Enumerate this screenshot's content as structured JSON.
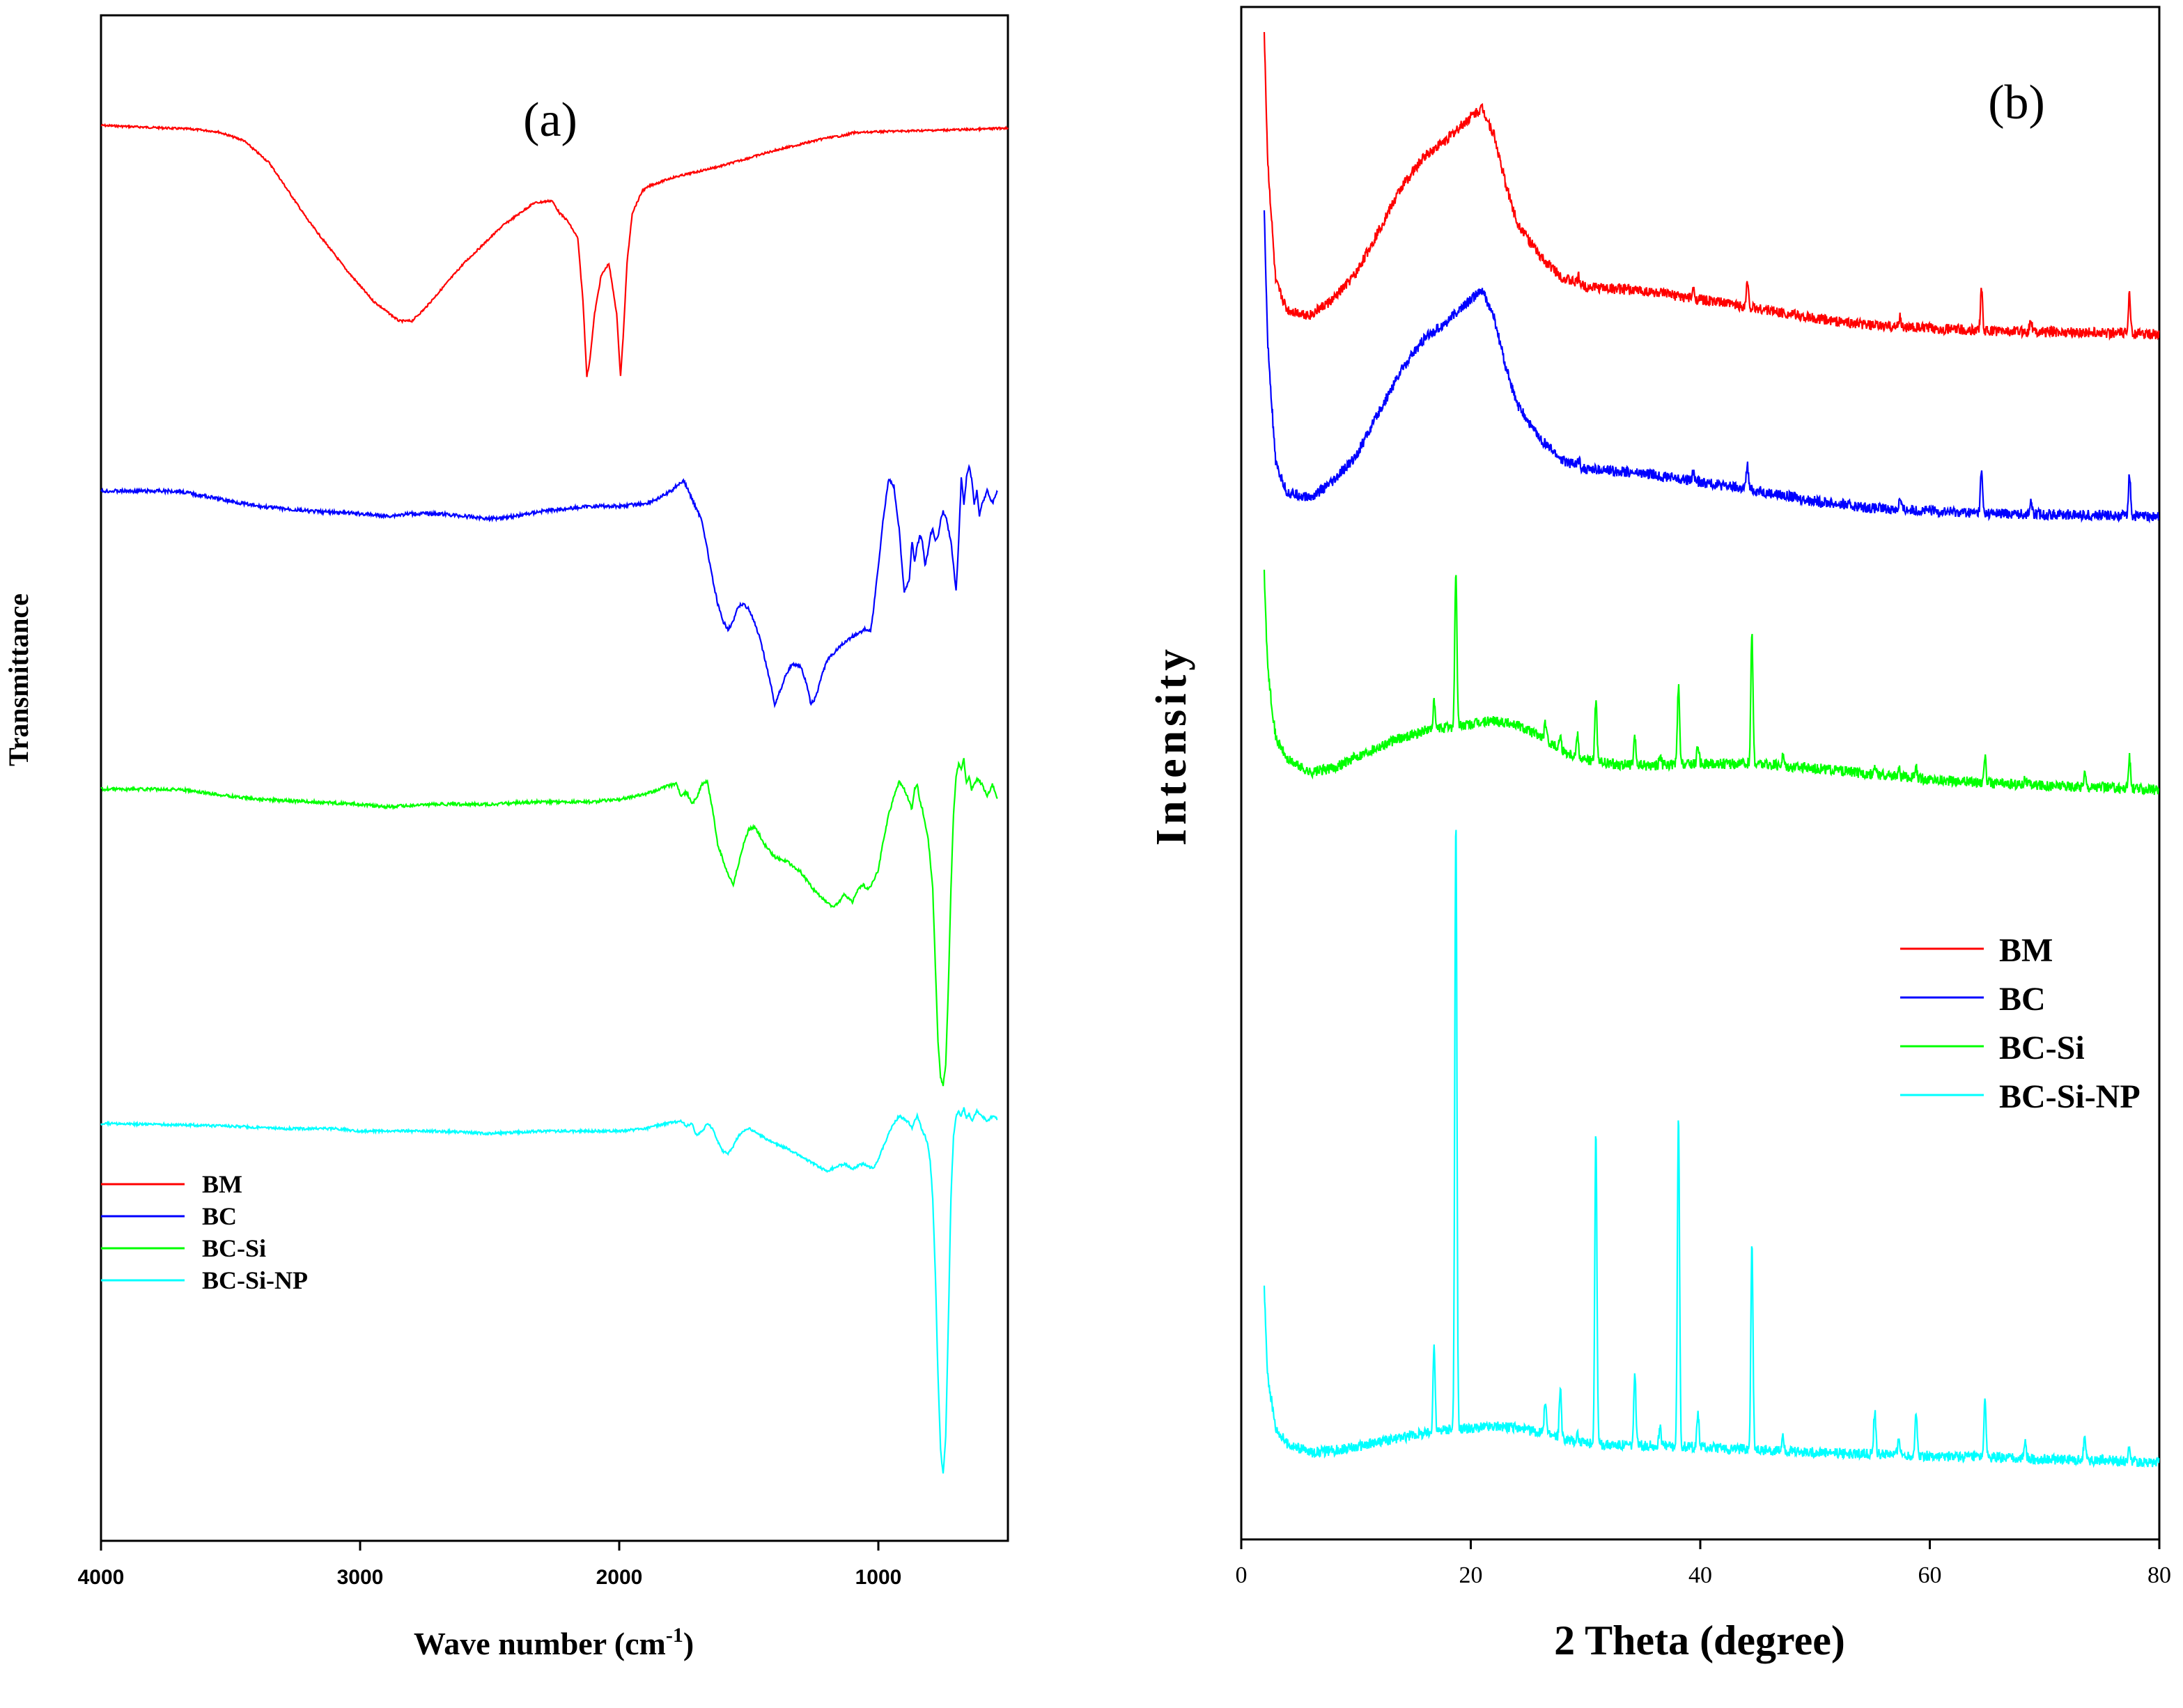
{
  "chart_data": [
    {
      "panel": "(a)",
      "type": "line",
      "title": "(a)",
      "xlabel": "Wave number (cm-1)",
      "xlabel_main": "Wave number (cm",
      "xlabel_sup": "-1",
      "xlabel_close": ")",
      "ylabel": "Transmittance",
      "xlim": [
        4000,
        500
      ],
      "x_reversed": true,
      "xticks": [
        4000,
        3000,
        2000,
        1000
      ],
      "yticks": [],
      "grid": false,
      "legend_position": "bottom-left",
      "series": [
        {
          "name": "BM",
          "color": "#ff0000",
          "offset": 0.0,
          "x": [
            4000,
            3650,
            3550,
            3450,
            3350,
            3200,
            3050,
            2950,
            2850,
            2800,
            2750,
            2600,
            2450,
            2330,
            2260,
            2230,
            2200,
            2160,
            2140,
            2125,
            2115,
            2095,
            2070,
            2040,
            2010,
            1995,
            1985,
            1970,
            1950,
            1910,
            1880,
            1800,
            1600,
            1400,
            1200,
            1130,
            1100,
            1000,
            800,
            600,
            500
          ],
          "y": [
            0.0,
            1.5,
            2.5,
            6,
            15,
            38,
            58,
            70,
            78,
            78,
            73,
            55,
            40,
            31,
            30,
            35,
            38,
            45,
            70,
            100,
            95,
            75,
            60,
            55,
            75,
            100,
            85,
            55,
            35,
            26,
            24,
            21,
            16,
            10,
            5,
            4,
            3,
            2.5,
            2,
            1.5,
            1.0
          ],
          "noise": 0.4
        },
        {
          "name": "BC",
          "color": "#0000ff",
          "offset": 120,
          "x": [
            4000,
            3700,
            3600,
            3400,
            3200,
            3000,
            2900,
            2800,
            2700,
            2600,
            2500,
            2400,
            2300,
            2200,
            2100,
            2000,
            1900,
            1850,
            1800,
            1770,
            1750,
            1720,
            1680,
            1640,
            1620,
            1600,
            1580,
            1560,
            1540,
            1520,
            1500,
            1480,
            1460,
            1440,
            1420,
            1400,
            1380,
            1360,
            1340,
            1320,
            1300,
            1280,
            1260,
            1240,
            1220,
            1200,
            1150,
            1100,
            1050,
            1030,
            1020,
            1000,
            980,
            960,
            940,
            920,
            900,
            880,
            870,
            860,
            850,
            840,
            830,
            820,
            810,
            800,
            790,
            780,
            770,
            760,
            750,
            740,
            730,
            720,
            710,
            700,
            690,
            680,
            670,
            660,
            650,
            640,
            630,
            620,
            610,
            600,
            580,
            560,
            540
          ],
          "y": [
            0.0,
            0.0,
            2,
            6,
            8,
            9,
            10,
            9,
            9,
            10,
            11,
            10,
            8,
            7,
            6,
            6,
            5,
            3,
            0,
            -3,
            -4,
            3,
            12,
            35,
            45,
            52,
            55,
            52,
            46,
            45,
            47,
            52,
            58,
            66,
            75,
            85,
            80,
            74,
            70,
            69,
            70,
            76,
            85,
            82,
            74,
            68,
            62,
            58,
            55,
            56,
            48,
            30,
            10,
            -5,
            -2,
            15,
            40,
            35,
            20,
            28,
            22,
            18,
            20,
            30,
            25,
            18,
            15,
            20,
            18,
            12,
            8,
            10,
            15,
            20,
            30,
            40,
            20,
            -5,
            5,
            -5,
            -10,
            -5,
            5,
            0,
            10,
            5,
            0,
            5,
            0
          ],
          "noise": 0.7
        },
        {
          "name": "BC-Si",
          "color": "#00ff00",
          "offset": 230,
          "x": [
            4000,
            3700,
            3600,
            3400,
            3200,
            3000,
            2900,
            2700,
            2500,
            2300,
            2100,
            2000,
            1900,
            1820,
            1780,
            1760,
            1740,
            1720,
            1700,
            1680,
            1660,
            1640,
            1620,
            1600,
            1580,
            1560,
            1540,
            1520,
            1500,
            1480,
            1460,
            1440,
            1400,
            1350,
            1300,
            1250,
            1200,
            1180,
            1160,
            1130,
            1100,
            1080,
            1060,
            1040,
            1020,
            1000,
            980,
            960,
            940,
            920,
            900,
            880,
            870,
            860,
            850,
            840,
            830,
            820,
            810,
            800,
            790,
            780,
            770,
            760,
            750,
            740,
            730,
            720,
            710,
            700,
            690,
            680,
            670,
            660,
            650,
            640,
            620,
            600,
            580,
            560,
            540
          ],
          "y": [
            0.0,
            0.0,
            1.5,
            4,
            5,
            6,
            7,
            6,
            6,
            5,
            5,
            4,
            2,
            -1,
            -2,
            3,
            1,
            6,
            3,
            -2,
            -3,
            8,
            22,
            28,
            34,
            38,
            30,
            22,
            16,
            15,
            18,
            22,
            27,
            29,
            33,
            40,
            45,
            47,
            46,
            42,
            45,
            40,
            38,
            40,
            37,
            32,
            20,
            10,
            3,
            -3,
            0,
            5,
            8,
            0,
            -2,
            5,
            8,
            14,
            18,
            28,
            40,
            70,
            100,
            115,
            118,
            110,
            80,
            40,
            10,
            -5,
            -10,
            -8,
            -12,
            -2,
            -5,
            0,
            -4,
            -2,
            3,
            -2,
            4
          ],
          "noise": 0.6
        },
        {
          "name": "BC-Si-NP",
          "color": "#00ffff",
          "offset": 340,
          "x": [
            4000,
            3700,
            3500,
            3300,
            3100,
            3000,
            2900,
            2700,
            2500,
            2300,
            2100,
            2000,
            1900,
            1820,
            1760,
            1740,
            1720,
            1700,
            1680,
            1660,
            1640,
            1620,
            1600,
            1580,
            1560,
            1540,
            1520,
            1500,
            1480,
            1450,
            1400,
            1350,
            1300,
            1250,
            1200,
            1180,
            1160,
            1130,
            1100,
            1080,
            1060,
            1040,
            1020,
            1000,
            980,
            960,
            940,
            920,
            900,
            880,
            870,
            860,
            850,
            840,
            830,
            820,
            810,
            800,
            790,
            780,
            770,
            760,
            750,
            740,
            730,
            720,
            710,
            700,
            690,
            680,
            670,
            660,
            650,
            640,
            620,
            600,
            580,
            560,
            540
          ],
          "y": [
            0.0,
            0.5,
            1,
            2,
            2,
            3,
            3,
            3,
            4,
            3,
            3,
            3,
            2,
            0,
            -1,
            1,
            0,
            5,
            3,
            0,
            2,
            7,
            11,
            12,
            9,
            5,
            3,
            2,
            3,
            5,
            8,
            10,
            13,
            16,
            19,
            18,
            17,
            16,
            18,
            17,
            16,
            17,
            18,
            14,
            9,
            4,
            0,
            -3,
            -2,
            0,
            2,
            -1,
            -3,
            0,
            3,
            5,
            8,
            15,
            30,
            60,
            100,
            130,
            140,
            125,
            80,
            30,
            5,
            -3,
            -5,
            -3,
            -6,
            -2,
            -4,
            -1,
            -5,
            -3,
            -1,
            -3,
            -2
          ],
          "noise": 0.5
        }
      ]
    },
    {
      "panel": "(b)",
      "type": "line",
      "title": "(b)",
      "xlabel": "2 Theta (degree)",
      "ylabel": "Intensity",
      "xlim": [
        0,
        80
      ],
      "xticks": [
        0,
        20,
        40,
        60,
        80
      ],
      "yticks": [],
      "grid": false,
      "legend_position": "middle-right",
      "peaks_bm_bc": [
        [
          29.4,
          8
        ],
        [
          39.4,
          10
        ],
        [
          44.1,
          28
        ],
        [
          57.4,
          12
        ],
        [
          64.5,
          48
        ],
        [
          68.8,
          16
        ],
        [
          77.4,
          48
        ]
      ],
      "peaks_bcsi": [
        [
          16.8,
          30
        ],
        [
          18.7,
          180
        ],
        [
          26.5,
          18
        ],
        [
          27.8,
          16
        ],
        [
          29.3,
          25
        ],
        [
          30.9,
          70
        ],
        [
          34.3,
          30
        ],
        [
          36.5,
          10
        ],
        [
          38.1,
          90
        ],
        [
          39.8,
          22
        ],
        [
          44.5,
          150
        ],
        [
          47.2,
          12
        ],
        [
          55.2,
          12
        ],
        [
          57.3,
          10
        ],
        [
          58.8,
          12
        ],
        [
          64.8,
          30
        ],
        [
          68.3,
          8
        ],
        [
          73.5,
          16
        ],
        [
          77.4,
          35
        ]
      ],
      "peaks_bcsinp": [
        [
          16.8,
          100
        ],
        [
          18.7,
          700
        ],
        [
          26.5,
          40
        ],
        [
          27.8,
          55
        ],
        [
          29.3,
          10
        ],
        [
          30.9,
          360
        ],
        [
          34.3,
          80
        ],
        [
          36.5,
          25
        ],
        [
          38.1,
          380
        ],
        [
          39.8,
          40
        ],
        [
          44.5,
          235
        ],
        [
          47.2,
          20
        ],
        [
          55.2,
          50
        ],
        [
          57.3,
          20
        ],
        [
          58.8,
          50
        ],
        [
          64.8,
          65
        ],
        [
          68.3,
          20
        ],
        [
          73.5,
          30
        ],
        [
          77.4,
          18
        ]
      ],
      "series": [
        {
          "name": "BM",
          "color": "#ff0000",
          "baseline_offset": 0.0,
          "x": [
            2,
            2.3,
            3,
            4,
            6,
            8,
            10,
            12,
            14,
            16,
            18,
            20,
            21,
            22,
            23,
            24,
            26,
            28,
            30,
            35,
            40,
            45,
            50,
            55,
            60,
            65,
            70,
            75,
            80
          ],
          "y": [
            350,
            200,
            60,
            28,
            22,
            40,
            70,
            120,
            170,
            205,
            225,
            250,
            260,
            230,
            175,
            130,
            90,
            65,
            55,
            50,
            40,
            30,
            18,
            10,
            7,
            4,
            3,
            2,
            0
          ]
        },
        {
          "name": "BC",
          "color": "#0000ff",
          "baseline_offset": 0.0,
          "x": [
            2,
            2.3,
            3,
            4,
            6,
            8,
            10,
            12,
            14,
            16,
            18,
            20,
            21,
            22,
            23,
            24,
            26,
            28,
            30,
            35,
            40,
            45,
            50,
            55,
            60,
            65,
            70,
            75,
            80
          ],
          "y": [
            350,
            200,
            60,
            28,
            22,
            40,
            70,
            120,
            170,
            205,
            225,
            250,
            260,
            230,
            175,
            130,
            90,
            65,
            55,
            50,
            40,
            30,
            18,
            10,
            7,
            4,
            3,
            2,
            0
          ]
        },
        {
          "name": "BC-Si",
          "color": "#00ff00",
          "baseline_offset": 0.0,
          "x": [
            2,
            2.3,
            3,
            4,
            6,
            8,
            10,
            12,
            14,
            16,
            18,
            20,
            22,
            24,
            26,
            28,
            30,
            32,
            35,
            40,
            45,
            50,
            55,
            60,
            65,
            70,
            75,
            80
          ],
          "y": [
            250,
            140,
            60,
            35,
            20,
            25,
            38,
            50,
            60,
            68,
            72,
            75,
            80,
            75,
            62,
            45,
            35,
            30,
            28,
            30,
            30,
            25,
            18,
            12,
            8,
            5,
            3,
            0
          ]
        },
        {
          "name": "BC-Si-NP",
          "color": "#00ffff",
          "baseline_offset": 0.0,
          "x": [
            2,
            2.3,
            3,
            4,
            6,
            8,
            10,
            12,
            15,
            18,
            20,
            22,
            24,
            26,
            28,
            30,
            35,
            40,
            45,
            50,
            55,
            60,
            65,
            70,
            75,
            80
          ],
          "y": [
            200,
            100,
            40,
            22,
            12,
            14,
            18,
            24,
            32,
            38,
            40,
            42,
            40,
            35,
            28,
            22,
            20,
            18,
            15,
            12,
            10,
            8,
            6,
            4,
            3,
            0
          ]
        }
      ]
    }
  ],
  "legend_a": [
    "BM",
    "BC",
    "BC-Si",
    "BC-Si-NP"
  ],
  "legend_b": [
    "BM",
    "BC",
    "BC-Si",
    "BC-Si-NP"
  ],
  "colors": {
    "BM": "#ff0000",
    "BC": "#0000ff",
    "BC-Si": "#00ff00",
    "BC-Si-NP": "#00ffff",
    "axis": "#000000"
  }
}
